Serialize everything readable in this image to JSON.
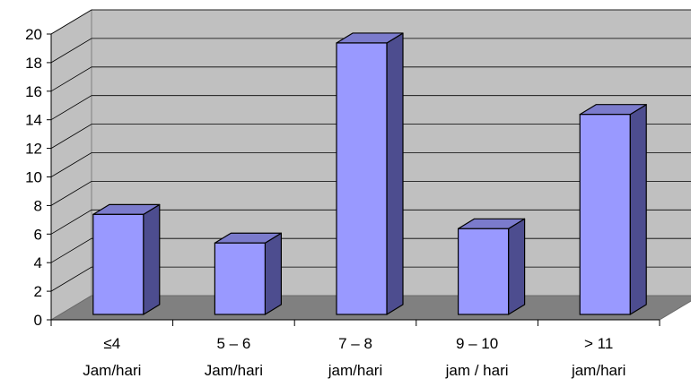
{
  "chart_data": {
    "type": "bar",
    "style": "3d-column",
    "categories": [
      [
        "≤4",
        "Jam/hari"
      ],
      [
        "5 – 6",
        "Jam/hari"
      ],
      [
        "7 – 8",
        "jam/hari"
      ],
      [
        "9 – 10",
        "jam / hari"
      ],
      [
        "> 11",
        "jam/hari"
      ]
    ],
    "values": [
      7,
      5,
      19,
      6,
      14
    ],
    "ylim": [
      0,
      20
    ],
    "yticks": [
      0,
      2,
      4,
      6,
      8,
      10,
      12,
      14,
      16,
      18,
      20
    ],
    "grid": true,
    "legend": "none",
    "colors": {
      "bar_front": "#9999ff",
      "bar_side": "#4d4d8f",
      "bar_top": "#7b7bcc",
      "wall": "#c0c0c0",
      "floor": "#808080",
      "gridline": "#000000"
    }
  }
}
